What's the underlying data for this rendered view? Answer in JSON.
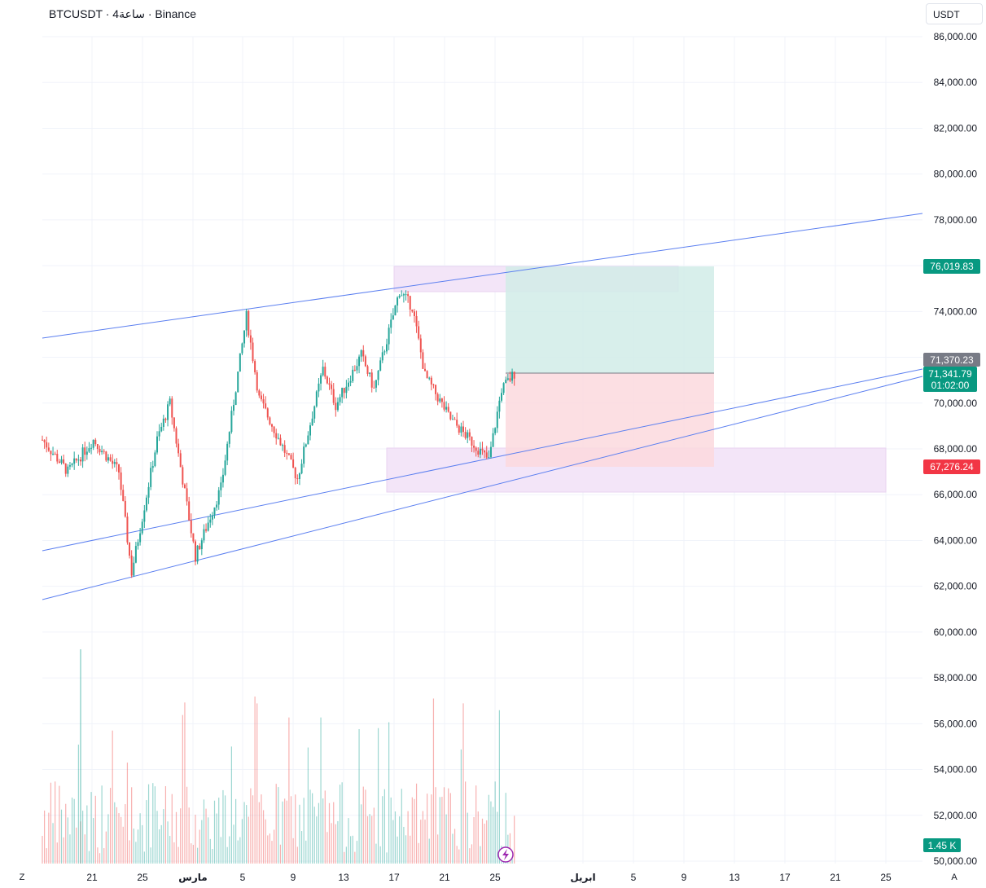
{
  "header": {
    "title": "BTCUSDT · 4ساعة · Binance",
    "currency_button": "USDT"
  },
  "axis": {
    "y_ticks": [
      "86,000.00",
      "84,000.00",
      "82,000.00",
      "80,000.00",
      "78,000.00",
      "76,000.00",
      "74,000.00",
      "72,000.00",
      "70,000.00",
      "68,000.00",
      "66,000.00",
      "64,000.00",
      "62,000.00",
      "60,000.00",
      "58,000.00",
      "56,000.00",
      "54,000.00",
      "52,000.00",
      "50,000.00"
    ],
    "x_ticks": [
      "21",
      "25",
      "مارس",
      "5",
      "9",
      "13",
      "17",
      "21",
      "25",
      "ابريل",
      "5",
      "9",
      "13",
      "17",
      "21",
      "25"
    ],
    "left_corner": "Z",
    "right_corner": "A"
  },
  "badges": {
    "target": "76,019.83",
    "entry": "71,370.23",
    "last_price": "71,341.79",
    "countdown": "01:02:00",
    "stop": "67,276.24",
    "volume": "1.45 K"
  },
  "colors": {
    "up": "#26a69a",
    "down": "#ef5350",
    "trendline": "#5b7ff0",
    "target_zone": "#d1ece7",
    "stop_zone": "#fbd9de",
    "zone": "#f3e5f8"
  },
  "chart_data": {
    "type": "candlestick",
    "y_range": [
      50000,
      86000
    ],
    "x_range": [
      "2024-02-18",
      "2024-04-27"
    ],
    "note_levels": {
      "target": 76019.83,
      "entry": 71370.23,
      "last": 71341.79,
      "stop": 67276.24
    },
    "swing_points": [
      {
        "date": "2024-02-18",
        "price": 68400
      },
      {
        "date": "2024-02-20",
        "price": 67000
      },
      {
        "date": "2024-02-22",
        "price": 68400
      },
      {
        "date": "2024-02-24",
        "price": 67000
      },
      {
        "date": "2024-02-25",
        "price": 62600
      },
      {
        "date": "2024-02-27",
        "price": 68400
      },
      {
        "date": "2024-02-28",
        "price": 70000
      },
      {
        "date": "2024-03-01",
        "price": 63300
      },
      {
        "date": "2024-03-03",
        "price": 66300
      },
      {
        "date": "2024-03-05",
        "price": 73800
      },
      {
        "date": "2024-03-06",
        "price": 70200
      },
      {
        "date": "2024-03-08",
        "price": 67900
      },
      {
        "date": "2024-03-09",
        "price": 66700
      },
      {
        "date": "2024-03-11",
        "price": 71500
      },
      {
        "date": "2024-03-12",
        "price": 69900
      },
      {
        "date": "2024-03-14",
        "price": 72100
      },
      {
        "date": "2024-03-15",
        "price": 70600
      },
      {
        "date": "2024-03-17",
        "price": 74900
      },
      {
        "date": "2024-03-18",
        "price": 74200
      },
      {
        "date": "2024-03-19",
        "price": 71200
      },
      {
        "date": "2024-03-21",
        "price": 69300
      },
      {
        "date": "2024-03-23",
        "price": 68100
      },
      {
        "date": "2024-03-24",
        "price": 67500
      },
      {
        "date": "2024-03-25",
        "price": 70600
      },
      {
        "date": "2024-03-26",
        "price": 71300
      }
    ]
  }
}
